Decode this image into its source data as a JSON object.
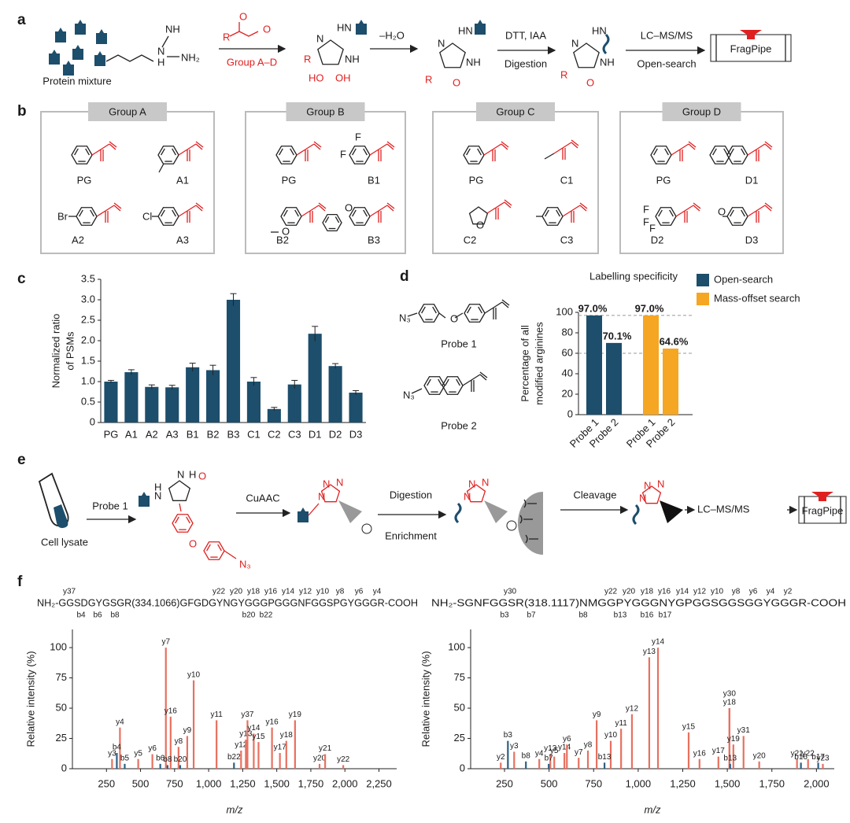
{
  "figure": {
    "letters": [
      "a",
      "b",
      "c",
      "d",
      "e",
      "f"
    ],
    "a": {
      "protein_mixture": "Protein mixture",
      "reagent": "Group A–D",
      "dehydration": "–H₂O",
      "reduction": "DTT, IAA",
      "digestion": "Digestion",
      "lcms": "LC–MS/MS",
      "search": "Open-search",
      "software": "FragPipe",
      "atoms": {
        "NH": "NH",
        "N": "N",
        "H": "H",
        "NH2": "NH₂",
        "HN": "HN",
        "R": "R",
        "O": "O",
        "HO": "HO",
        "OH": "OH"
      }
    },
    "b": {
      "groups": [
        {
          "title": "Group A",
          "compounds": [
            "PG",
            "A1",
            "A2",
            "A3"
          ]
        },
        {
          "title": "Group B",
          "compounds": [
            "PG",
            "B1",
            "B2",
            "B3"
          ]
        },
        {
          "title": "Group C",
          "compounds": [
            "PG",
            "C1",
            "C2",
            "C3"
          ]
        },
        {
          "title": "Group D",
          "compounds": [
            "PG",
            "D1",
            "D2",
            "D3"
          ]
        }
      ],
      "atoms": {
        "Br": "Br",
        "Cl": "Cl",
        "F": "F",
        "O": "O"
      }
    },
    "d": {
      "probes": [
        "Probe 1",
        "Probe 2"
      ],
      "atoms": {
        "N3": "N₃",
        "O": "O"
      }
    },
    "e": {
      "lysate": "Cell lysate",
      "probe": "Probe 1",
      "click": "CuAAC",
      "digestion": "Digestion",
      "enrichment": "Enrichment",
      "cleavage": "Cleavage",
      "lcms": "LC–MS/MS",
      "software": "FragPipe",
      "atoms": {
        "H": "H",
        "N": "N",
        "O": "O",
        "N3": "N₃"
      }
    }
  },
  "chart_data": [
    {
      "type": "bar",
      "ylabel": [
        "Normalized ratio",
        "of PSMs"
      ],
      "categories": [
        "PG",
        "A1",
        "A2",
        "A3",
        "B1",
        "B2",
        "B3",
        "C1",
        "C2",
        "C3",
        "D1",
        "D2",
        "D3"
      ],
      "values": [
        1.0,
        1.23,
        0.87,
        0.86,
        1.35,
        1.28,
        3.0,
        1.0,
        0.33,
        0.93,
        2.17,
        1.38,
        0.73
      ],
      "errors": [
        0.03,
        0.06,
        0.05,
        0.05,
        0.1,
        0.12,
        0.15,
        0.1,
        0.04,
        0.1,
        0.18,
        0.06,
        0.05
      ],
      "color": "#1d4e6b",
      "ylim": [
        0,
        3.5
      ],
      "yticks": [
        0,
        0.5,
        {
          "value": 1,
          "label": "1.0"
        },
        1.5,
        {
          "value": 2,
          "label": "2.0"
        },
        2.5,
        {
          "value": 3,
          "label": "3.0"
        },
        3.5
      ]
    },
    {
      "type": "bar",
      "title": "Labelling specificity",
      "ylabel": [
        "Percentage of all",
        "modified arginines"
      ],
      "categories": [
        "Probe 1",
        "Probe 2"
      ],
      "series": [
        {
          "name": "Open-search",
          "color": "#1d4e6b",
          "values": [
            97.0,
            70.1
          ],
          "value_labels": [
            "97.0%",
            "70.1%"
          ]
        },
        {
          "name": "Mass-offset search",
          "color": "#f5a623",
          "values": [
            97.0,
            64.6
          ],
          "value_labels": [
            "97.0%",
            "64.6%"
          ]
        }
      ],
      "ylim": [
        0,
        100
      ],
      "yticks": [
        0,
        20,
        40,
        60,
        80,
        100
      ],
      "reference_lines": [
        97,
        60
      ],
      "legend": "right"
    },
    {
      "type": "spectrum",
      "sequence": "NH₂-GGSDGYGSGR(334.1066)GFGDGYNGYGGGPGGGNFGGSPGYGGGR-COOH",
      "sequence_ions": {
        "top": [
          "y37",
          "y22",
          "y20",
          "y18",
          "y16",
          "y14",
          "y12",
          "y10",
          "y8",
          "y6",
          "y4"
        ],
        "bottom": [
          "b4",
          "b6",
          "b8",
          "b20",
          "b22"
        ]
      },
      "xlabel": "m/z",
      "ylabel": "Relative intensity (%)",
      "xlim": [
        0,
        2380
      ],
      "ylim": [
        0,
        115
      ],
      "xticks": [
        250,
        500,
        750,
        {
          "value": 1000,
          "label": "1,000"
        },
        {
          "value": 1250,
          "label": "1,250"
        },
        {
          "value": 1500,
          "label": "1,500"
        },
        {
          "value": 1750,
          "label": "1,750"
        },
        {
          "value": 2000,
          "label": "2,000"
        },
        {
          "value": 2250,
          "label": "2,250"
        }
      ],
      "yticks": [
        0,
        25,
        50,
        75,
        100
      ],
      "series": [
        {
          "color": "#e8705f",
          "x": [
            291,
            349,
            483,
            587,
            686,
            721,
            779,
            843,
            890,
            1058,
            1238,
            1273,
            1285,
            1331,
            1366,
            1465,
            1523,
            1570,
            1634,
            1814,
            1855,
            1988
          ],
          "values": [
            8,
            34,
            8,
            12,
            100,
            43,
            18,
            27,
            73,
            40,
            15,
            24,
            40,
            29,
            22,
            34,
            13,
            23,
            40,
            4,
            12,
            3
          ],
          "labels": [
            "y3",
            "y4",
            "y5",
            "y6",
            "y7",
            "y16",
            "y8",
            "y9",
            "y10",
            "y11",
            "y12",
            "y13",
            "y37",
            "y14",
            "y15",
            "y16",
            "y17",
            "y18",
            "y19",
            "y20",
            "y21",
            "y22"
          ]
        },
        {
          "color": "#2d5f84",
          "x": [
            326,
            384,
            645,
            698,
            791,
            1186
          ],
          "values": [
            13,
            4,
            4,
            3,
            3,
            5
          ],
          "labels": [
            "b4",
            "b5",
            "b6",
            "b8",
            "b20",
            "b22"
          ]
        }
      ]
    },
    {
      "type": "spectrum",
      "sequence": "NH₂-SGNFGGSR(318.1117)NMGGPYGGGNYGPGGSGGSGGYGGGR-COOH",
      "sequence_ions": {
        "top": [
          "y30",
          "y22",
          "y20",
          "y18",
          "y16",
          "y14",
          "y12",
          "y10",
          "y8",
          "y6",
          "y4",
          "y2"
        ],
        "bottom": [
          "b3",
          "b7",
          "b8",
          "b13",
          "b16",
          "b17"
        ]
      },
      "xlabel": "m/z",
      "ylabel": "Relative intensity (%)",
      "xlim": [
        60,
        2100
      ],
      "ylim": [
        0,
        115
      ],
      "xticks": [
        250,
        500,
        750,
        {
          "value": 1000,
          "label": "1,000"
        },
        {
          "value": 1250,
          "label": "1,250"
        },
        {
          "value": 1500,
          "label": "1,500"
        },
        {
          "value": 1750,
          "label": "1,750"
        },
        {
          "value": 2000,
          "label": "2,000"
        }
      ],
      "yticks": [
        0,
        25,
        50,
        75,
        100
      ],
      "series": [
        {
          "color": "#e8705f",
          "x": [
            229,
            304,
            445,
            507,
            529,
            586,
            600,
            666,
            718,
            767,
            846,
            904,
            965,
            1062,
            1111,
            1283,
            1344,
            1450,
            1512,
            1512,
            1534,
            1591,
            1679,
            1891,
            1953,
            2036
          ],
          "values": [
            5,
            14,
            8,
            12,
            10,
            13,
            20,
            9,
            15,
            40,
            23,
            33,
            45,
            92,
            100,
            30,
            8,
            10,
            50,
            50,
            20,
            27,
            6,
            8,
            8,
            4
          ],
          "labels": [
            "y2",
            "y3",
            "y4",
            "y13",
            "y5",
            "y14",
            "y6",
            "y7",
            "y8",
            "y9",
            "y10",
            "y11",
            "y12",
            "y13",
            "y14",
            "y15",
            "y16",
            "y17",
            "y18",
            "y30",
            "y19",
            "y31",
            "y20",
            "y21",
            "y22",
            "y23"
          ]
        },
        {
          "color": "#2d5f84",
          "x": [
            269,
            370,
            498,
            811,
            1516,
            1913,
            2010
          ],
          "values": [
            23,
            6,
            4,
            5,
            4,
            5,
            5
          ],
          "labels": [
            "b3",
            "b8",
            "b7",
            "b13",
            "b13",
            "b16",
            "b17"
          ]
        }
      ]
    }
  ]
}
